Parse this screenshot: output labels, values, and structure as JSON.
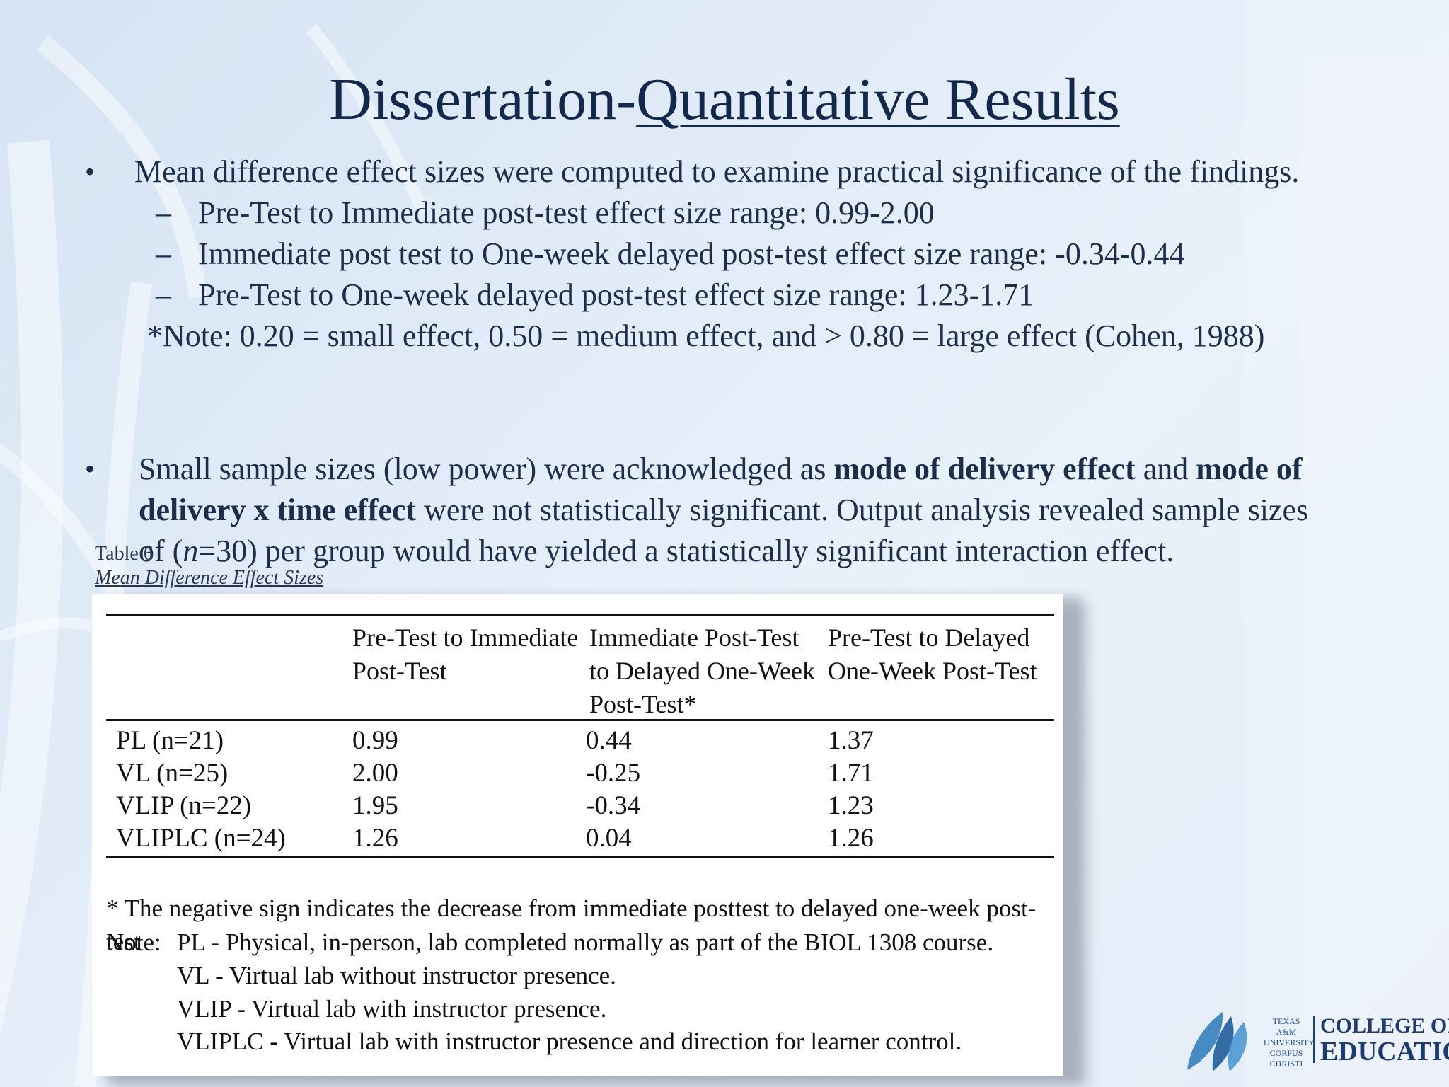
{
  "slide": {
    "title_plain": "Dissertation-",
    "title_underlined": "Quantitative Results"
  },
  "bullets": {
    "b1_text": "Mean difference effect sizes were computed to examine practical significance of the findings.",
    "sub": [
      "Pre-Test to Immediate post-test effect size range: 0.99-2.00",
      "Immediate post test to One-week delayed post-test effect size range: -0.34-0.44",
      "Pre-Test to One-week delayed post-test effect size range: 1.23-1.71"
    ],
    "dash": "–",
    "dot": "•",
    "note": "*Note: 0.20 = small effect, 0.50 = medium effect, and > 0.80 = large effect (Cohen, 1988)",
    "b2_part1": "Small sample sizes (low power) were acknowledged as ",
    "b2_bold1": "mode of delivery effect",
    "b2_part2": " and ",
    "b2_bold2": "mode of delivery x time effect",
    "b2_part3": " were not statistically significant. Output analysis revealed sample sizes of (",
    "b2_italic_n": "n",
    "b2_part4": "=30) per group would have yielded a statistically significant interaction effect."
  },
  "table": {
    "caption_label": "Table 6",
    "caption_title": "Mean Difference Effect Sizes",
    "headers": [
      "Pre-Test to Immediate Post-Test",
      "Immediate Post-Test to Delayed One-Week Post-Test*",
      "Pre-Test to Delayed One-Week Post-Test"
    ],
    "rows": [
      {
        "group": "PL (n=21)",
        "v1": "0.99",
        "v2": "0.44",
        "v3": "1.37"
      },
      {
        "group": "VL (n=25)",
        "v1": "2.00",
        "v2": "-0.25",
        "v3": "1.71"
      },
      {
        "group": "VLIP (n=22)",
        "v1": "1.95",
        "v2": "-0.34",
        "v3": "1.23"
      },
      {
        "group": "VLIPLC (n=24)",
        "v1": "1.26",
        "v2": "0.04",
        "v3": "1.26"
      }
    ],
    "footnote": "* The negative sign indicates the decrease from immediate posttest to delayed one-week post-test",
    "note_label": "Note:",
    "note_lines": [
      "PL - Physical, in-person, lab completed normally as part of the BIOL 1308 course.",
      "VL -  Virtual lab without instructor presence.",
      "VLIP - Virtual lab with instructor presence.",
      "VLIPLC - Virtual lab with instructor presence and direction for learner control."
    ]
  },
  "logo": {
    "small_lines": [
      "TEXAS A&M",
      "UNIVERSITY",
      "CORPUS",
      "CHRISTI"
    ],
    "line1": "COLLEGE OF",
    "line2": "EDUCATION"
  },
  "colors": {
    "title": "#13294b",
    "body": "#1c2e4a",
    "logo_blue": "#1d3b6e"
  }
}
